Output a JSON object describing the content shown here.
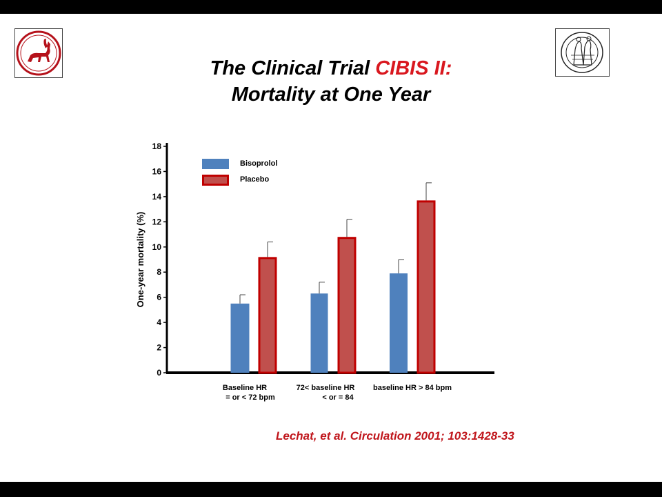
{
  "title": {
    "line1_prefix": "The Clinical Trial ",
    "line1_highlight": "CIBIS II:",
    "line2": "Mortality at One Year"
  },
  "citation": "Lechat, et al. Circulation 2001; 103:1428-33",
  "colors": {
    "bisoprolol": "#4f81bd",
    "placebo_fill": "#c0504d",
    "placebo_stroke": "#c00000",
    "title_highlight": "#d9181f",
    "citation": "#c0161c"
  },
  "chart_data": {
    "type": "bar",
    "categories": [
      [
        "Baseline HR",
        "= or < 72 bpm"
      ],
      [
        "72< baseline HR",
        "< or = 84"
      ],
      [
        "baseline HR > 84 bpm"
      ]
    ],
    "series": [
      {
        "name": "Bisoprolol",
        "values": [
          5.5,
          6.3,
          7.9
        ],
        "error_upper": [
          6.2,
          7.2,
          9.0
        ]
      },
      {
        "name": "Placebo",
        "values": [
          9.2,
          10.8,
          13.7
        ],
        "error_upper": [
          10.4,
          12.2,
          15.1
        ]
      }
    ],
    "ylabel": "One-year mortality (%)",
    "xlabel": "",
    "ylim": [
      0,
      18
    ],
    "yticks": [
      0,
      2,
      4,
      6,
      8,
      10,
      12,
      14,
      16,
      18
    ],
    "legend_position": "top-left",
    "grid": false
  }
}
